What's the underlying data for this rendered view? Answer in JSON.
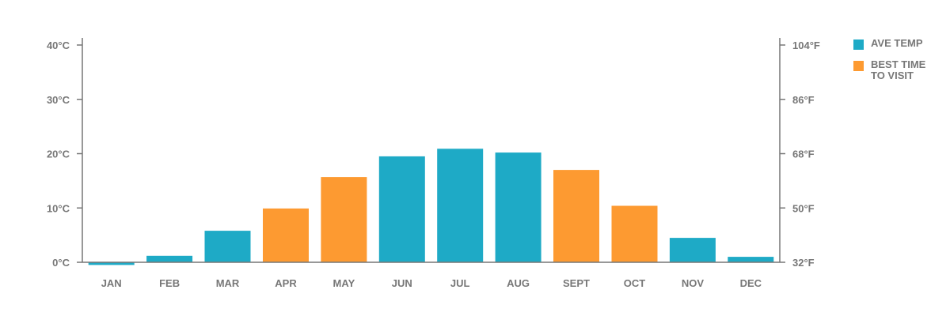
{
  "chart_data": {
    "type": "bar",
    "categories": [
      "JAN",
      "FEB",
      "MAR",
      "APR",
      "MAY",
      "JUN",
      "JUL",
      "AUG",
      "SEPT",
      "OCT",
      "NOV",
      "DEC"
    ],
    "values": [
      -0.5,
      1.2,
      5.8,
      9.9,
      15.7,
      19.5,
      20.9,
      20.2,
      17.0,
      10.4,
      4.5,
      1.0
    ],
    "best_time": [
      false,
      false,
      false,
      true,
      true,
      false,
      false,
      false,
      true,
      true,
      false,
      false
    ],
    "ylim": [
      0,
      40
    ],
    "yticks_left": [
      "0°C",
      "10°C",
      "20°C",
      "30°C",
      "40°C"
    ],
    "yticks_right": [
      "32°F",
      "50°F",
      "68°F",
      "86°F",
      "104°F"
    ],
    "title": "",
    "xlabel": "",
    "ylabel": "",
    "legend": [
      {
        "label": "AVE TEMP",
        "color": "#1eaac6"
      },
      {
        "label": "BEST TIME TO VISIT",
        "color": "#fd9a31"
      }
    ],
    "colors": {
      "ave": "#1eaac6",
      "best": "#fd9a31",
      "axis": "#777777"
    }
  }
}
